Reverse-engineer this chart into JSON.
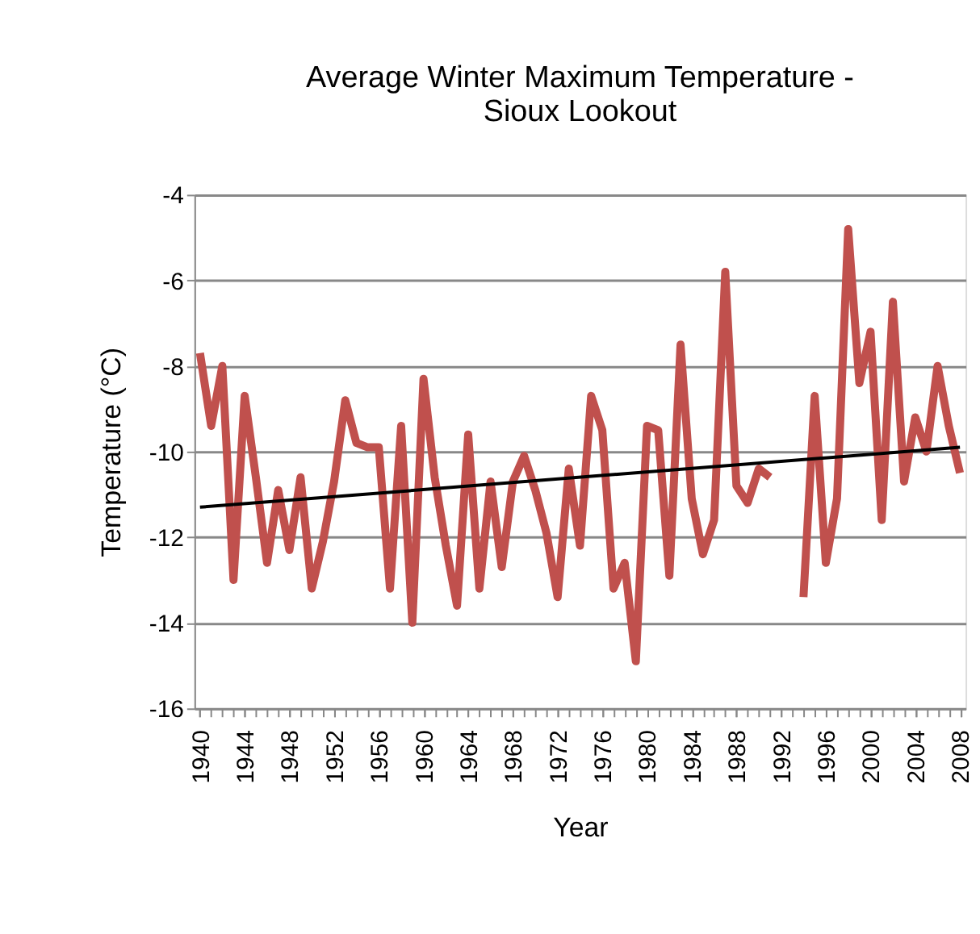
{
  "chart_data": {
    "type": "line",
    "title": "Average Winter Maximum  Temperature -\nSioux Lookout",
    "xlabel": "Year",
    "ylabel": "Temperature (°C)",
    "x": [
      1940,
      1941,
      1942,
      1943,
      1944,
      1945,
      1946,
      1947,
      1948,
      1949,
      1950,
      1951,
      1952,
      1953,
      1954,
      1955,
      1956,
      1957,
      1958,
      1959,
      1960,
      1961,
      1962,
      1963,
      1964,
      1965,
      1966,
      1967,
      1968,
      1969,
      1970,
      1971,
      1972,
      1973,
      1974,
      1975,
      1976,
      1977,
      1978,
      1979,
      1980,
      1981,
      1982,
      1983,
      1984,
      1985,
      1986,
      1987,
      1988,
      1989,
      1990,
      1991,
      1992,
      1993,
      1994,
      1995,
      1996,
      1997,
      1998,
      1999,
      2000,
      2001,
      2002,
      2003,
      2004,
      2005,
      2006,
      2007,
      2008
    ],
    "series": [
      {
        "color": "#c0504d",
        "values": [
          -7.7,
          -9.4,
          -8.0,
          -13.0,
          -8.7,
          -10.6,
          -12.6,
          -10.9,
          -12.3,
          -10.6,
          -13.2,
          -12.1,
          -10.7,
          -8.8,
          -9.8,
          -9.9,
          -9.9,
          -13.2,
          -9.4,
          -14.0,
          -8.3,
          -10.6,
          -12.2,
          -13.6,
          -9.6,
          -13.2,
          -10.7,
          -12.7,
          -10.7,
          -10.1,
          -10.9,
          -11.9,
          -13.4,
          -10.4,
          -12.2,
          -8.7,
          -9.5,
          -13.2,
          -12.6,
          -14.9,
          -9.4,
          -9.5,
          -12.9,
          -7.5,
          -11.1,
          -12.4,
          -11.6,
          -5.8,
          -10.8,
          -11.2,
          -10.4,
          -10.6,
          null,
          null,
          -13.4,
          -8.7,
          -12.6,
          -11.1,
          -4.8,
          -8.4,
          -7.2,
          -11.6,
          -6.5,
          -10.7,
          -9.2,
          -10.0,
          -8.0,
          -9.4,
          -10.5
        ]
      },
      {
        "type": "line",
        "color": "#000000",
        "x": [
          1940,
          2008
        ],
        "values": [
          -11.3,
          -9.9
        ]
      }
    ],
    "xlim": [
      1939.5,
      2008.5
    ],
    "xticks": [
      1940,
      {
        "value": 1941,
        "label": null
      },
      {
        "value": 1942,
        "label": null
      },
      {
        "value": 1943,
        "label": null
      },
      1944,
      {
        "value": 1945,
        "label": null
      },
      {
        "value": 1946,
        "label": null
      },
      {
        "value": 1947,
        "label": null
      },
      1948,
      {
        "value": 1949,
        "label": null
      },
      {
        "value": 1950,
        "label": null
      },
      {
        "value": 1951,
        "label": null
      },
      1952,
      {
        "value": 1953,
        "label": null
      },
      {
        "value": 1954,
        "label": null
      },
      {
        "value": 1955,
        "label": null
      },
      1956,
      {
        "value": 1957,
        "label": null
      },
      {
        "value": 1958,
        "label": null
      },
      {
        "value": 1959,
        "label": null
      },
      1960,
      {
        "value": 1961,
        "label": null
      },
      {
        "value": 1962,
        "label": null
      },
      {
        "value": 1963,
        "label": null
      },
      1964,
      {
        "value": 1965,
        "label": null
      },
      {
        "value": 1966,
        "label": null
      },
      {
        "value": 1967,
        "label": null
      },
      1968,
      {
        "value": 1969,
        "label": null
      },
      {
        "value": 1970,
        "label": null
      },
      {
        "value": 1971,
        "label": null
      },
      1972,
      {
        "value": 1973,
        "label": null
      },
      {
        "value": 1974,
        "label": null
      },
      {
        "value": 1975,
        "label": null
      },
      1976,
      {
        "value": 1977,
        "label": null
      },
      {
        "value": 1978,
        "label": null
      },
      {
        "value": 1979,
        "label": null
      },
      1980,
      {
        "value": 1981,
        "label": null
      },
      {
        "value": 1982,
        "label": null
      },
      {
        "value": 1983,
        "label": null
      },
      1984,
      {
        "value": 1985,
        "label": null
      },
      {
        "value": 1986,
        "label": null
      },
      {
        "value": 1987,
        "label": null
      },
      1988,
      {
        "value": 1989,
        "label": null
      },
      {
        "value": 1990,
        "label": null
      },
      {
        "value": 1991,
        "label": null
      },
      1992,
      {
        "value": 1993,
        "label": null
      },
      {
        "value": 1994,
        "label": null
      },
      {
        "value": 1995,
        "label": null
      },
      1996,
      {
        "value": 1997,
        "label": null
      },
      {
        "value": 1998,
        "label": null
      },
      {
        "value": 1999,
        "label": null
      },
      2000,
      {
        "value": 2001,
        "label": null
      },
      {
        "value": 2002,
        "label": null
      },
      {
        "value": 2003,
        "label": null
      },
      2004,
      {
        "value": 2005,
        "label": null
      },
      {
        "value": 2006,
        "label": null
      },
      {
        "value": 2007,
        "label": null
      },
      2008
    ],
    "ylim": [
      -16,
      -4
    ],
    "yticks": [
      -16,
      -14,
      -12,
      -10,
      -8,
      -6,
      -4
    ],
    "grid": "y",
    "marker": "none",
    "line_style": "solid"
  }
}
